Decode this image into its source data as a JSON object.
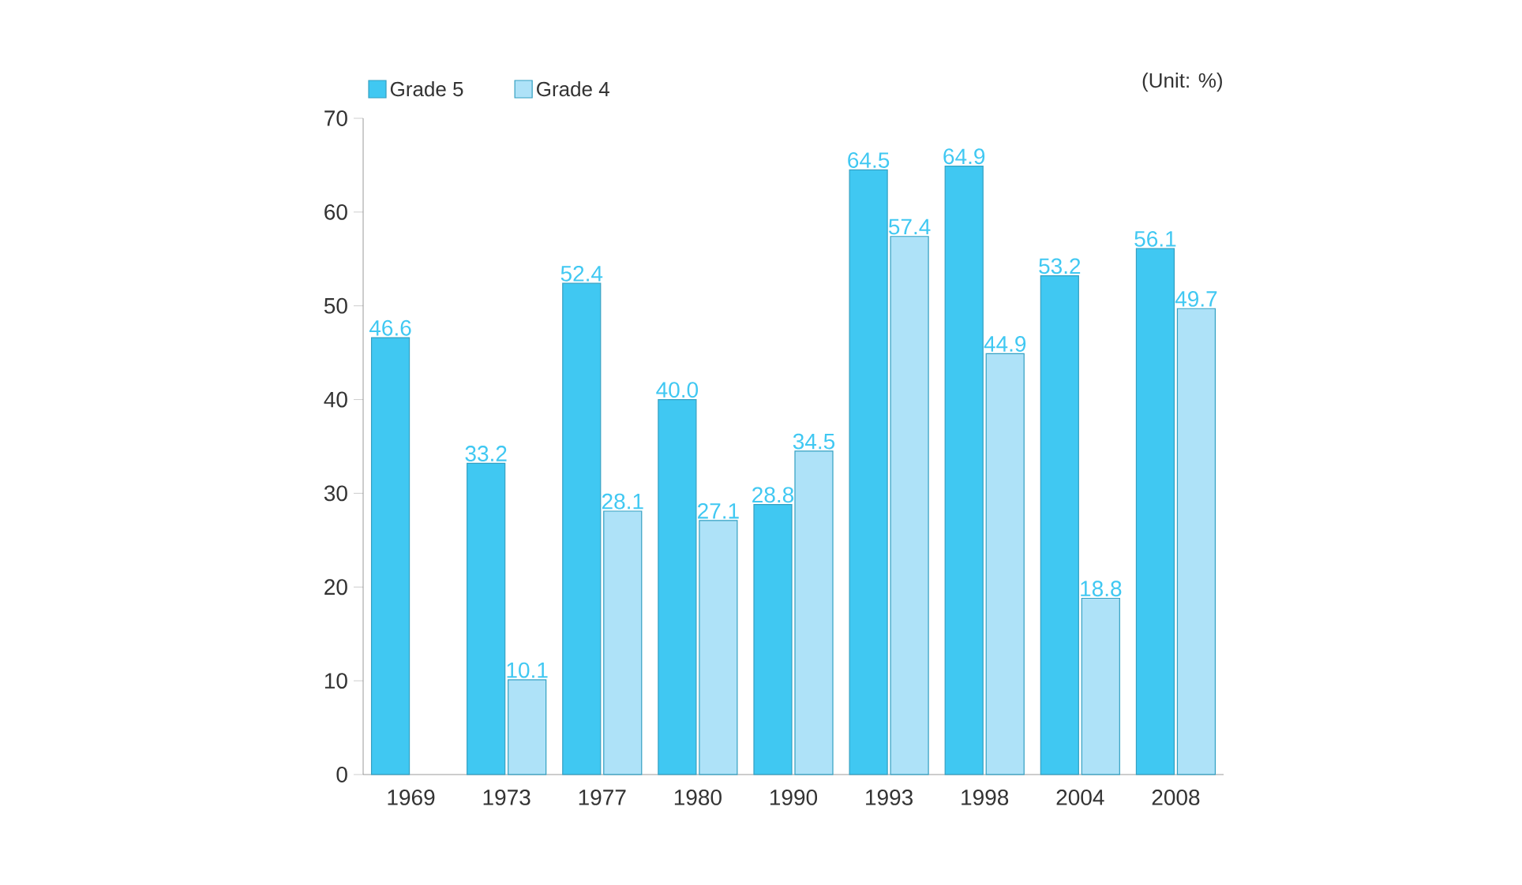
{
  "chart_data": {
    "type": "bar",
    "categories": [
      "1969",
      "1973",
      "1977",
      "1980",
      "1990",
      "1993",
      "1998",
      "2004",
      "2008"
    ],
    "series": [
      {
        "name": "Grade 5",
        "color": "#40c8f2",
        "values": [
          46.6,
          33.2,
          52.4,
          40.0,
          28.8,
          64.5,
          64.9,
          53.2,
          56.1
        ],
        "value_labels": [
          "46.6",
          "33.2",
          "52.4",
          "40.0",
          "28.8",
          "64.5",
          "64.9",
          "53.2",
          "56.1"
        ]
      },
      {
        "name": "Grade 4",
        "color": "#aee2f8",
        "values": [
          null,
          10.1,
          28.1,
          27.1,
          34.5,
          57.4,
          44.9,
          18.8,
          49.7
        ],
        "value_labels": [
          null,
          "10.1",
          "28.1",
          "27.1",
          "34.5",
          "57.4",
          "44.9",
          "18.8",
          "49.7"
        ]
      }
    ],
    "ylim": [
      0,
      70
    ],
    "yticks": [
      0,
      10,
      20,
      30,
      40,
      50,
      60,
      70
    ],
    "legend": "top left",
    "annotations": [
      "(Unit: %)"
    ]
  }
}
